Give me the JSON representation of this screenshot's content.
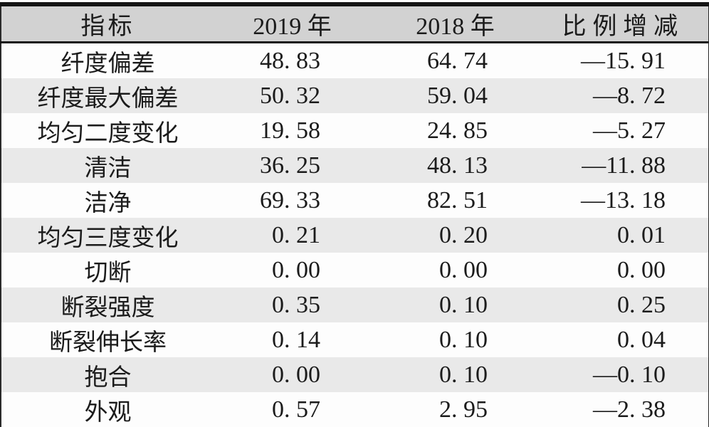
{
  "table": {
    "title_semantic": "silk-quality-indicator-comparison",
    "columns": [
      "指标",
      "2019 年",
      "2018 年",
      "比例增减"
    ],
    "rows": [
      [
        "纤度偏差",
        "48. 83",
        "64. 74",
        "—15. 91"
      ],
      [
        "纤度最大偏差",
        "50. 32",
        "59. 04",
        "—8. 72"
      ],
      [
        "均匀二度变化",
        "19. 58",
        "24. 85",
        "—5. 27"
      ],
      [
        "清洁",
        "36. 25",
        "48. 13",
        "—11. 88"
      ],
      [
        "洁净",
        "69. 33",
        "82. 51",
        "—13. 18"
      ],
      [
        "均匀三度变化",
        "0. 21",
        "0. 20",
        "0. 01"
      ],
      [
        "切断",
        "0. 00",
        "0. 00",
        "0. 00"
      ],
      [
        "断裂强度",
        "0. 35",
        "0. 10",
        "0. 25"
      ],
      [
        "断裂伸长率",
        "0. 14",
        "0. 10",
        "0. 04"
      ],
      [
        "抱合",
        "0. 00",
        "0. 10",
        "—0. 10"
      ],
      [
        "外观",
        "0. 57",
        "2. 95",
        "—2. 38"
      ]
    ],
    "colors": {
      "header_background": "#d2d2d2",
      "stripe_background": "#e9e9e9",
      "row_background": "#fdfdfd",
      "rule_color": "#141414",
      "text_color": "#1b1b1b"
    }
  }
}
